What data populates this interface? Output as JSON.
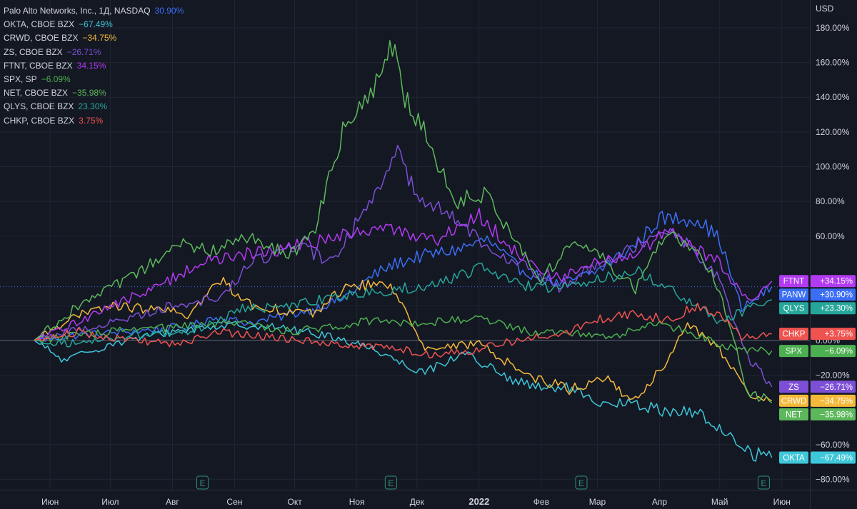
{
  "chart_data": {
    "type": "line",
    "currency": "USD",
    "y_unit": "%",
    "ylim": [
      -86,
      196
    ],
    "y_ticks": [
      "180.00%",
      "160.00%",
      "140.00%",
      "120.00%",
      "100.00%",
      "80.00%",
      "60.00%",
      "20.00%",
      "0.00%",
      "−20.00%",
      "−60.00%",
      "−80.00%"
    ],
    "y_tick_values": [
      180,
      160,
      140,
      120,
      100,
      80,
      60,
      20,
      0,
      -20,
      -60,
      -80
    ],
    "x_ticks": [
      "Июн",
      "Июл",
      "Авг",
      "Сен",
      "Окт",
      "Ноя",
      "Дек",
      "2022",
      "Фев",
      "Мар",
      "Апр",
      "Май",
      "Июн"
    ],
    "x_tick_dates": [
      "2021-06-01",
      "2021-07-01",
      "2021-08-01",
      "2021-09-01",
      "2021-10-01",
      "2021-11-01",
      "2021-12-01",
      "2022-01-01",
      "2022-02-01",
      "2022-03-01",
      "2022-04-01",
      "2022-05-01",
      "2022-06-01"
    ],
    "earnings_markers": [
      {
        "label": "E",
        "date": "2021-08-16"
      },
      {
        "label": "E",
        "date": "2021-11-18"
      },
      {
        "label": "E",
        "date": "2022-02-21"
      },
      {
        "label": "E",
        "date": "2022-05-23"
      }
    ],
    "grid": true,
    "legend": "top-left",
    "series": [
      {
        "key": "PANW",
        "legend_name": "Palo Alto Networks, Inc., 1Д, NASDAQ",
        "legend_value": "30.90%",
        "badge_value": "+30.90%",
        "color": "#3b6ef5",
        "x": [
          "2021-05-24",
          "2021-06-15",
          "2021-07-10",
          "2021-08-10",
          "2021-08-20",
          "2021-09-10",
          "2021-10-10",
          "2021-10-25",
          "2021-11-10",
          "2021-11-20",
          "2021-12-01",
          "2021-12-20",
          "2022-01-05",
          "2022-01-20",
          "2022-02-10",
          "2022-03-01",
          "2022-03-20",
          "2022-04-01",
          "2022-04-20",
          "2022-05-01",
          "2022-05-12",
          "2022-05-27"
        ],
        "y": [
          0,
          3,
          5,
          8,
          13,
          10,
          18,
          24,
          38,
          44,
          48,
          52,
          58,
          42,
          32,
          40,
          55,
          70,
          70,
          58,
          18,
          30.9
        ]
      },
      {
        "key": "OKTA",
        "legend_name": "OKTA, CBOE BZX",
        "legend_value": "−67.49%",
        "badge_value": "−67.49%",
        "color": "#3ec6d9",
        "x": [
          "2021-05-24",
          "2021-06-08",
          "2021-07-01",
          "2021-08-01",
          "2021-08-20",
          "2021-09-10",
          "2021-10-01",
          "2021-10-20",
          "2021-11-10",
          "2021-11-25",
          "2021-12-05",
          "2021-12-25",
          "2022-01-15",
          "2022-02-01",
          "2022-02-15",
          "2022-03-01",
          "2022-03-15",
          "2022-04-01",
          "2022-04-20",
          "2022-05-05",
          "2022-05-15",
          "2022-05-27"
        ],
        "y": [
          0,
          -12,
          -2,
          5,
          8,
          9,
          6,
          2,
          -5,
          -14,
          -18,
          -7,
          -22,
          -28,
          -27,
          -38,
          -36,
          -40,
          -42,
          -54,
          -64,
          -67.49
        ]
      },
      {
        "key": "CRWD",
        "legend_name": "CRWD, CBOE BZX",
        "legend_value": "−34.75%",
        "badge_value": "−34.75%",
        "color": "#f5b93a",
        "x": [
          "2021-05-24",
          "2021-06-10",
          "2021-07-01",
          "2021-07-20",
          "2021-08-10",
          "2021-08-25",
          "2021-09-10",
          "2021-10-10",
          "2021-10-25",
          "2021-11-15",
          "2021-11-25",
          "2021-12-05",
          "2022-01-01",
          "2022-01-25",
          "2022-02-15",
          "2022-03-05",
          "2022-03-20",
          "2022-04-05",
          "2022-04-15",
          "2022-05-01",
          "2022-05-15",
          "2022-05-27"
        ],
        "y": [
          0,
          12,
          20,
          18,
          15,
          35,
          20,
          15,
          30,
          33,
          20,
          -5,
          -2,
          -20,
          -28,
          -22,
          -35,
          -12,
          10,
          -5,
          -32,
          -34.75
        ]
      },
      {
        "key": "ZS",
        "legend_name": "ZS, CBOE BZX",
        "legend_value": "−26.71%",
        "badge_value": "−26.71%",
        "color": "#7c4fd6",
        "x": [
          "2021-05-24",
          "2021-06-10",
          "2021-07-01",
          "2021-08-01",
          "2021-08-25",
          "2021-09-10",
          "2021-10-01",
          "2021-10-20",
          "2021-11-10",
          "2021-11-20",
          "2021-12-01",
          "2021-12-20",
          "2022-01-05",
          "2022-01-20",
          "2022-02-10",
          "2022-03-01",
          "2022-03-20",
          "2022-04-05",
          "2022-04-20",
          "2022-05-01",
          "2022-05-15",
          "2022-05-27"
        ],
        "y": [
          0,
          5,
          10,
          20,
          25,
          45,
          55,
          45,
          85,
          110,
          85,
          70,
          55,
          45,
          30,
          45,
          55,
          65,
          50,
          35,
          -10,
          -26.71
        ]
      },
      {
        "key": "FTNT",
        "legend_name": "FTNT, CBOE BZX",
        "legend_value": "34.15%",
        "badge_value": "+34.15%",
        "color": "#b23af2",
        "x": [
          "2021-05-24",
          "2021-06-10",
          "2021-07-01",
          "2021-07-20",
          "2021-08-15",
          "2021-09-10",
          "2021-10-05",
          "2021-10-25",
          "2021-11-10",
          "2021-11-25",
          "2021-12-10",
          "2022-01-01",
          "2022-01-20",
          "2022-02-10",
          "2022-03-01",
          "2022-03-20",
          "2022-04-05",
          "2022-04-20",
          "2022-05-01",
          "2022-05-15",
          "2022-05-27"
        ],
        "y": [
          0,
          8,
          20,
          28,
          45,
          50,
          55,
          60,
          65,
          62,
          58,
          72,
          50,
          35,
          45,
          50,
          62,
          52,
          45,
          22,
          34.15
        ]
      },
      {
        "key": "SPX",
        "legend_name": "SPX, SP",
        "legend_value": "−6.09%",
        "badge_value": "−6.09%",
        "color": "#4caf50",
        "x": [
          "2021-05-24",
          "2021-06-15",
          "2021-07-10",
          "2021-08-10",
          "2021-09-05",
          "2021-09-30",
          "2021-10-20",
          "2021-11-10",
          "2021-11-30",
          "2021-12-20",
          "2022-01-05",
          "2022-01-25",
          "2022-02-15",
          "2022-03-08",
          "2022-03-29",
          "2022-04-15",
          "2022-05-01",
          "2022-05-12",
          "2022-05-27"
        ],
        "y": [
          0,
          3,
          6,
          8,
          10,
          5,
          8,
          12,
          10,
          12,
          12,
          5,
          5,
          2,
          10,
          5,
          -2,
          -6,
          -6.09
        ]
      },
      {
        "key": "NET",
        "legend_name": "NET, CBOE BZX",
        "legend_value": "−35.98%",
        "badge_value": "−35.98%",
        "color": "#5db85c",
        "x": [
          "2021-05-24",
          "2021-06-15",
          "2021-07-10",
          "2021-08-05",
          "2021-08-20",
          "2021-09-10",
          "2021-09-28",
          "2021-10-10",
          "2021-10-25",
          "2021-11-05",
          "2021-11-15",
          "2021-11-20",
          "2021-11-25",
          "2021-12-03",
          "2021-12-20",
          "2022-01-05",
          "2022-01-20",
          "2022-02-01",
          "2022-02-15",
          "2022-03-01",
          "2022-03-20",
          "2022-04-05",
          "2022-04-20",
          "2022-05-01",
          "2022-05-15",
          "2022-05-27"
        ],
        "y": [
          0,
          20,
          35,
          55,
          52,
          60,
          48,
          60,
          120,
          135,
          160,
          175,
          140,
          125,
          80,
          85,
          55,
          35,
          55,
          50,
          30,
          62,
          50,
          30,
          -30,
          -35.98
        ]
      },
      {
        "key": "QLYS",
        "legend_name": "QLYS, CBOE BZX",
        "legend_value": "23.30%",
        "badge_value": "+23.30%",
        "color": "#26a69a",
        "x": [
          "2021-05-24",
          "2021-06-15",
          "2021-07-10",
          "2021-08-10",
          "2021-09-05",
          "2021-10-01",
          "2021-10-20",
          "2021-11-10",
          "2021-11-25",
          "2021-12-10",
          "2022-01-01",
          "2022-01-20",
          "2022-02-10",
          "2022-03-01",
          "2022-03-20",
          "2022-04-05",
          "2022-04-20",
          "2022-05-01",
          "2022-05-15",
          "2022-05-27"
        ],
        "y": [
          0,
          -2,
          3,
          5,
          18,
          20,
          25,
          28,
          30,
          32,
          42,
          32,
          30,
          35,
          40,
          30,
          20,
          10,
          18,
          23.3
        ]
      },
      {
        "key": "CHKP",
        "legend_name": "CHKP, CBOE BZX",
        "legend_value": "3.75%",
        "badge_value": "+3.75%",
        "color": "#ef5350",
        "x": [
          "2021-05-24",
          "2021-06-15",
          "2021-07-10",
          "2021-08-05",
          "2021-08-25",
          "2021-09-10",
          "2021-10-01",
          "2021-10-25",
          "2021-11-20",
          "2021-12-10",
          "2022-01-01",
          "2022-01-20",
          "2022-02-15",
          "2022-03-01",
          "2022-03-20",
          "2022-04-05",
          "2022-04-20",
          "2022-05-01",
          "2022-05-12",
          "2022-05-27"
        ],
        "y": [
          0,
          5,
          0,
          -2,
          5,
          3,
          0,
          -2,
          -5,
          -8,
          -5,
          0,
          5,
          12,
          15,
          12,
          20,
          15,
          2,
          3.75
        ]
      }
    ]
  }
}
